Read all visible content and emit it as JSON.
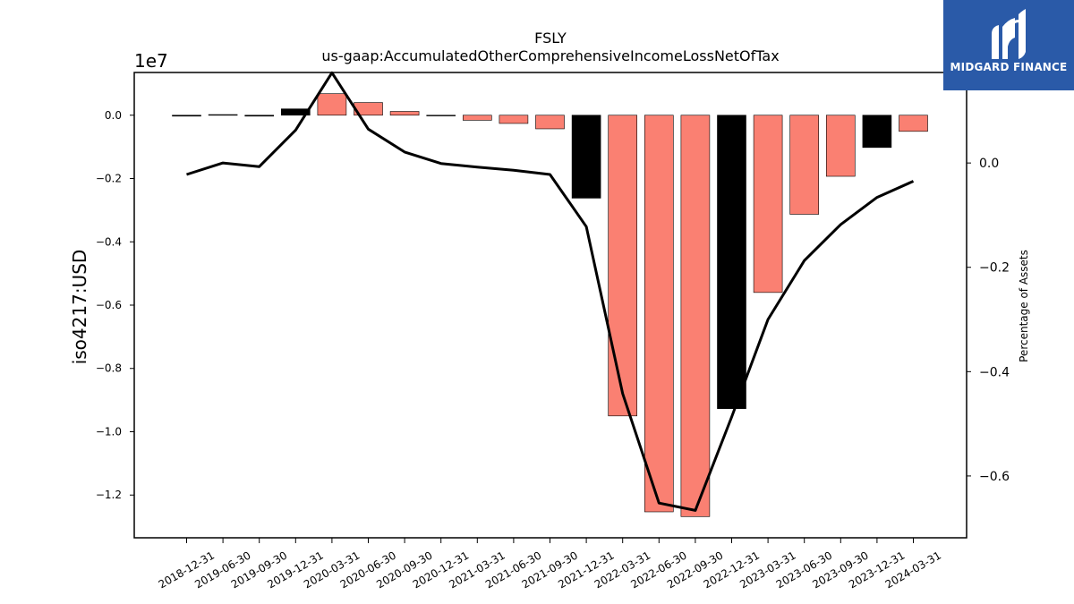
{
  "chart_data": {
    "type": "bar",
    "title": "FSLY",
    "subtitle": "us-gaap:AccumulatedOtherComprehensiveIncomeLossNetOfTax",
    "ylabel": "iso4217:USD",
    "y2label": "Percentage of Assets",
    "y_offset_label": "1e7",
    "y_scale": 10000000,
    "ylim": [
      -1.335,
      0.135
    ],
    "y2lim": [
      -0.7185,
      0.1735
    ],
    "yticks": [
      0.0,
      -0.2,
      -0.4,
      -0.6,
      -0.8,
      -1.0,
      -1.2
    ],
    "yticklabels": [
      "0.0",
      "−0.2",
      "−0.4",
      "−0.6",
      "−0.8",
      "−1.0",
      "−1.2"
    ],
    "y2ticks": [
      0.0,
      -0.2,
      -0.4,
      -0.6
    ],
    "y2ticklabels": [
      "0.0",
      "−0.2",
      "−0.4",
      "−0.6"
    ],
    "categories": [
      "2018-12-31",
      "2019-06-30",
      "2019-09-30",
      "2019-12-31",
      "2020-03-31",
      "2020-06-30",
      "2020-09-30",
      "2020-12-31",
      "2021-03-31",
      "2021-06-30",
      "2021-09-30",
      "2021-12-31",
      "2022-03-31",
      "2022-06-30",
      "2022-09-30",
      "2022-12-31",
      "2023-03-31",
      "2023-06-30",
      "2023-09-30",
      "2023-12-31",
      "2024-03-31"
    ],
    "series": [
      {
        "kind": "bar",
        "values": [
          -0.003,
          0.002,
          -0.003,
          0.02,
          0.068,
          0.04,
          0.012,
          -0.001,
          -0.016,
          -0.026,
          -0.043,
          -0.262,
          -0.95,
          -1.253,
          -1.268,
          -0.927,
          -0.56,
          -0.313,
          -0.193,
          -0.102,
          -0.051
        ],
        "colors": [
          "#000000",
          "#000000",
          "#000000",
          "#000000",
          "#fa8072",
          "#fa8072",
          "#fa8072",
          "#000000",
          "#fa8072",
          "#fa8072",
          "#fa8072",
          "#000000",
          "#fa8072",
          "#fa8072",
          "#fa8072",
          "#000000",
          "#fa8072",
          "#fa8072",
          "#fa8072",
          "#000000",
          "#fa8072"
        ]
      },
      {
        "kind": "line",
        "axis": "right",
        "color": "#000000",
        "values": [
          -0.022,
          0.0,
          -0.007,
          0.063,
          0.173,
          0.065,
          0.021,
          -0.001,
          -0.008,
          -0.014,
          -0.022,
          -0.122,
          -0.442,
          -0.652,
          -0.666,
          -0.487,
          -0.3,
          -0.187,
          -0.118,
          -0.066,
          -0.035
        ]
      }
    ]
  },
  "logo": {
    "text": "MIDGARD FINANCE",
    "color": "#2a5aa8"
  }
}
